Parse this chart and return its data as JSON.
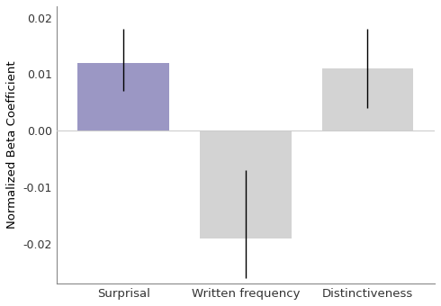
{
  "categories": [
    "Surprisal",
    "Written frequency",
    "Distinctiveness"
  ],
  "values": [
    0.012,
    -0.019,
    0.011
  ],
  "bar_colors": [
    "#9b97c4",
    "#d3d3d3",
    "#d3d3d3"
  ],
  "error_low": [
    0.007,
    -0.012,
    0.004
  ],
  "error_high": [
    0.018,
    -0.007,
    0.018
  ],
  "err_extend_low": [
    0.007,
    -0.026,
    0.004
  ],
  "err_extend_high": [
    0.018,
    -0.007,
    0.018
  ],
  "ylim": [
    -0.027,
    0.022
  ],
  "yticks": [
    -0.02,
    -0.01,
    0.0,
    0.01,
    0.02
  ],
  "ylabel": "Normalized Beta Coefficient",
  "background_color": "#ffffff",
  "bar_width": 0.75,
  "figsize": [
    4.9,
    3.4
  ],
  "dpi": 100
}
